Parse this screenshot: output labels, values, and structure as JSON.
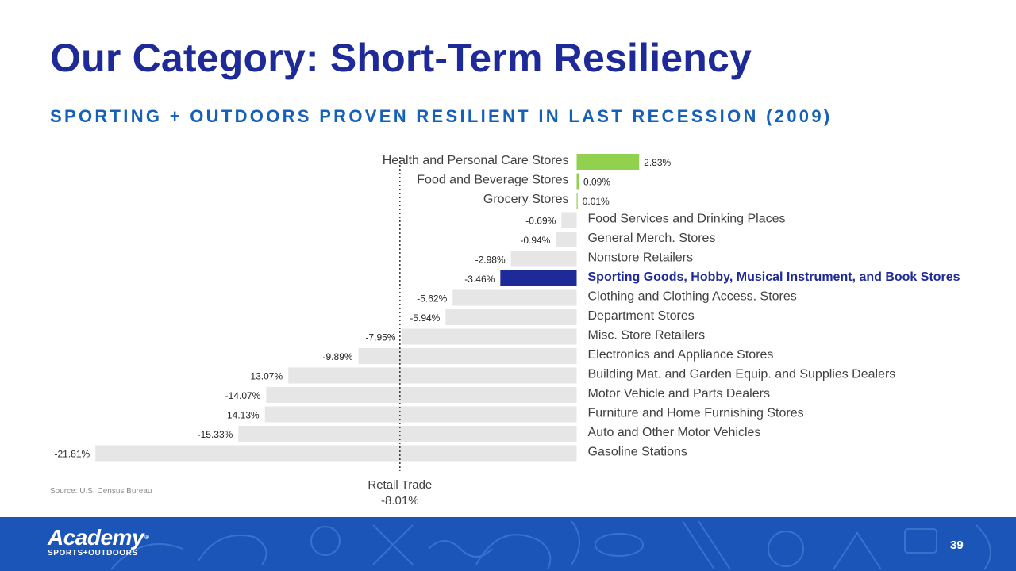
{
  "title": "Our Category: Short-Term Resiliency",
  "subtitle": "SPORTING + OUTDOORS PROVEN RESILIENT IN LAST RECESSION (2009)",
  "source": "Source: U.S. Census Bureau",
  "page_number": "39",
  "logo": {
    "main": "Academy",
    "registered": "®",
    "sub": "SPORTS+OUTDOORS"
  },
  "footer": {
    "background": "#1b55b8",
    "pattern": "outdoor-sports-illustration-pattern"
  },
  "colors": {
    "positive": "#92d050",
    "negative": "#e6e6e6",
    "highlight": "#1f2a99",
    "text": "#404040",
    "title": "#1f2a99",
    "subtitle": "#1560b8"
  },
  "chart_data": {
    "type": "bar",
    "orientation": "horizontal",
    "title": "",
    "xlabel": "",
    "ylabel": "",
    "grid": false,
    "unit": "%",
    "categories": [
      "Health and Personal Care Stores",
      "Food and Beverage Stores",
      "Grocery Stores",
      "Food Services and Drinking Places",
      "General Merch. Stores",
      "Nonstore Retailers",
      "Sporting Goods, Hobby, Musical Instrument, and Book Stores",
      "Clothing and Clothing Access. Stores",
      "Department Stores",
      "Misc. Store Retailers",
      "Electronics and Appliance Stores",
      "Building Mat. and Garden Equip. and Supplies Dealers",
      "Motor Vehicle and Parts Dealers",
      "Furniture and Home Furnishing Stores",
      "Auto and Other Motor Vehicles",
      "Gasoline Stations"
    ],
    "values": [
      2.83,
      0.09,
      0.01,
      -0.69,
      -0.94,
      -2.98,
      -3.46,
      -5.62,
      -5.94,
      -7.95,
      -9.89,
      -13.07,
      -14.07,
      -14.13,
      -15.33,
      -21.81
    ],
    "value_labels": [
      "2.83%",
      "0.09%",
      "0.01%",
      "-0.69%",
      "-0.94%",
      "-2.98%",
      "-3.46%",
      "-5.62%",
      "-5.94%",
      "-7.95%",
      "-9.89%",
      "-13.07%",
      "-14.07%",
      "-14.13%",
      "-15.33%",
      "-21.81%"
    ],
    "highlight_category": "Sporting Goods, Hobby, Musical Instrument, and Book Stores",
    "reference_line": {
      "label": "Retail Trade",
      "value": -8.01,
      "value_label": "-8.01%"
    }
  }
}
